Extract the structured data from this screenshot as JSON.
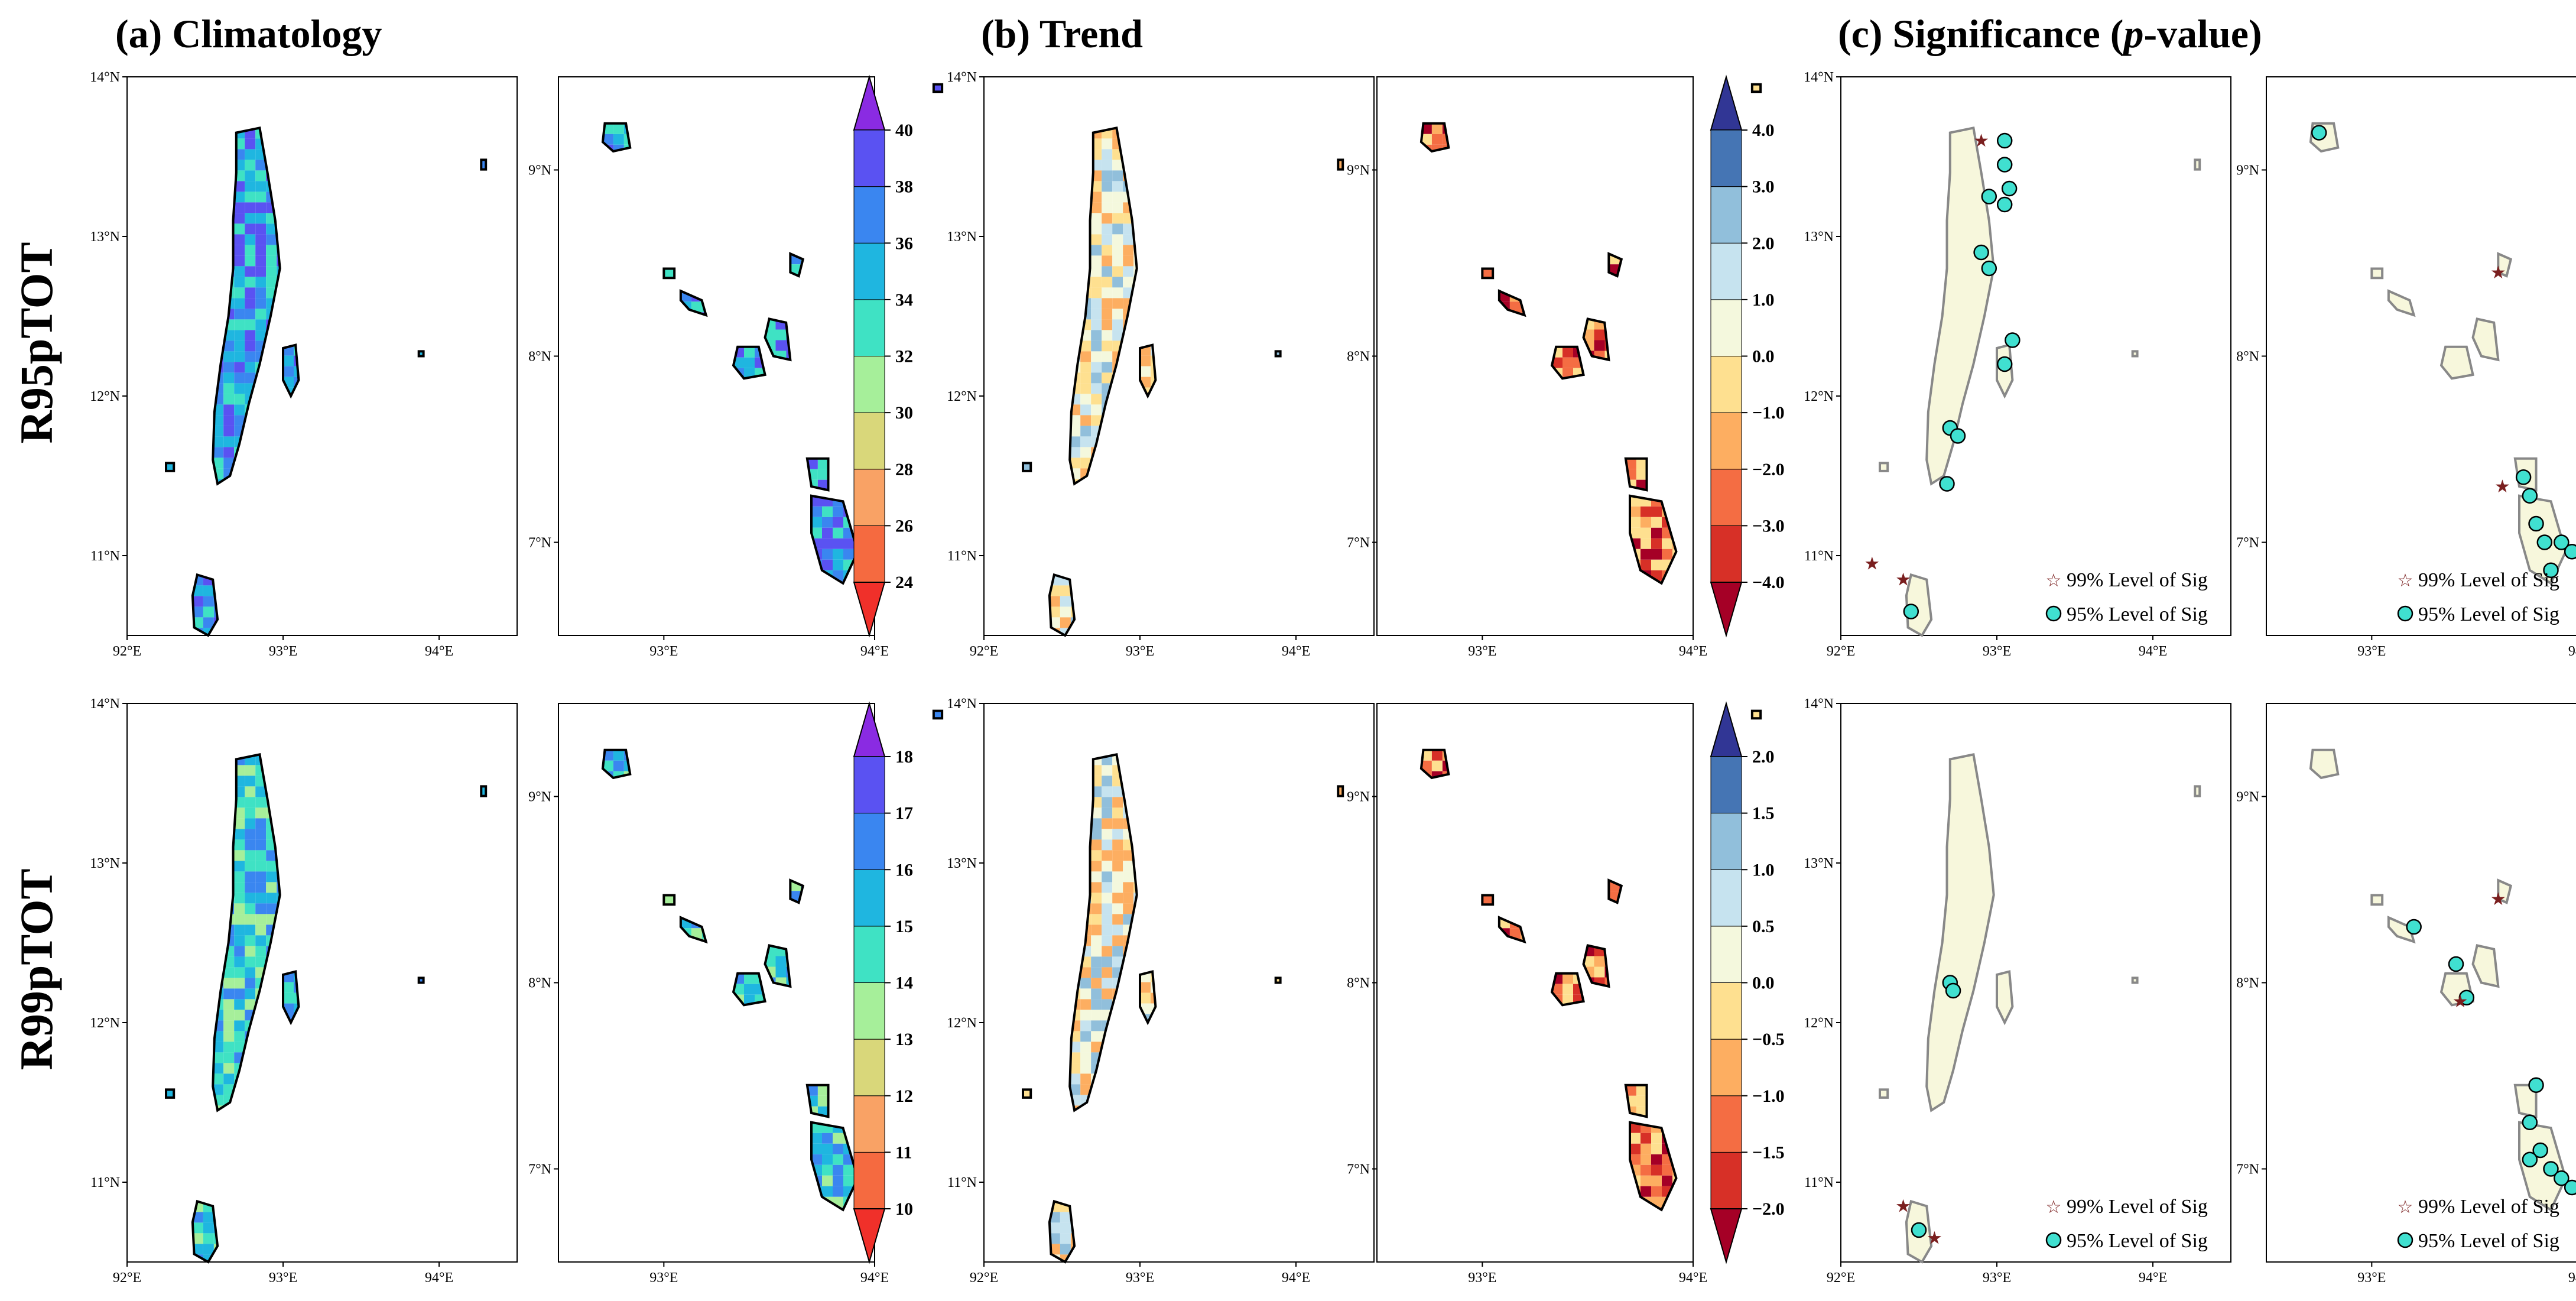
{
  "column_titles": [
    {
      "prefix": "(a) Climatology",
      "italic": "",
      "suffix": ""
    },
    {
      "prefix": "(b) Trend",
      "italic": "",
      "suffix": ""
    },
    {
      "prefix": "(c) Significance (",
      "italic": "p",
      "suffix": "-value)"
    }
  ],
  "row_labels": [
    "R95pTOT",
    "R99pTOT"
  ],
  "map_ticks": {
    "north": {
      "x": [
        "92°E",
        "93°E",
        "94°E"
      ],
      "y": [
        "11°N",
        "12°N",
        "13°N",
        "14°N"
      ]
    },
    "south": {
      "x": [
        "93°E",
        "94°E"
      ],
      "y": [
        "7°N",
        "8°N",
        "9°N"
      ]
    }
  },
  "colorbars": [
    {
      "name": "R95pTOT climatology",
      "ticks": [
        "24",
        "26",
        "28",
        "30",
        "32",
        "34",
        "36",
        "38",
        "40"
      ],
      "colors": [
        "#f0302a",
        "#f56a40",
        "#f9a265",
        "#d9d77a",
        "#a6ef9a",
        "#3fe2c4",
        "#1fb6e0",
        "#3a86f0",
        "#5a52f2",
        "#8a2be2"
      ]
    },
    {
      "name": "R95pTOT trend",
      "ticks": [
        "−4.0",
        "−3.0",
        "−2.0",
        "−1.0",
        "0.0",
        "1.0",
        "2.0",
        "3.0",
        "4.0"
      ],
      "colors": [
        "#a50026",
        "#d73027",
        "#f46d43",
        "#fdae61",
        "#fee090",
        "#f4f8dd",
        "#c6e3ef",
        "#91bfdb",
        "#4575b4",
        "#313695"
      ]
    },
    {
      "name": "R99pTOT climatology",
      "ticks": [
        "10",
        "11",
        "12",
        "13",
        "14",
        "15",
        "16",
        "17",
        "18"
      ],
      "colors": [
        "#f0302a",
        "#f56a40",
        "#f9a265",
        "#d9d77a",
        "#a6ef9a",
        "#3fe2c4",
        "#1fb6e0",
        "#3a86f0",
        "#5a52f2",
        "#8a2be2"
      ]
    },
    {
      "name": "R99pTOT trend",
      "ticks": [
        "−2.0",
        "−1.5",
        "−1.0",
        "−0.5",
        "0.0",
        "0.5",
        "1.0",
        "1.5",
        "2.0"
      ],
      "colors": [
        "#a50026",
        "#d73027",
        "#f46d43",
        "#fdae61",
        "#fee090",
        "#f4f8dd",
        "#c6e3ef",
        "#91bfdb",
        "#4575b4",
        "#313695"
      ]
    }
  ],
  "legend": {
    "sig99": "99% Level of Sig",
    "sig95": "95% Level of Sig",
    "star_color": "#7a1f1f",
    "circle_color": "#40e0d0"
  },
  "map_style": {
    "land_fill_sig": "#f7f7dc",
    "outline_sig": "#888888",
    "outline": "#000000"
  }
}
